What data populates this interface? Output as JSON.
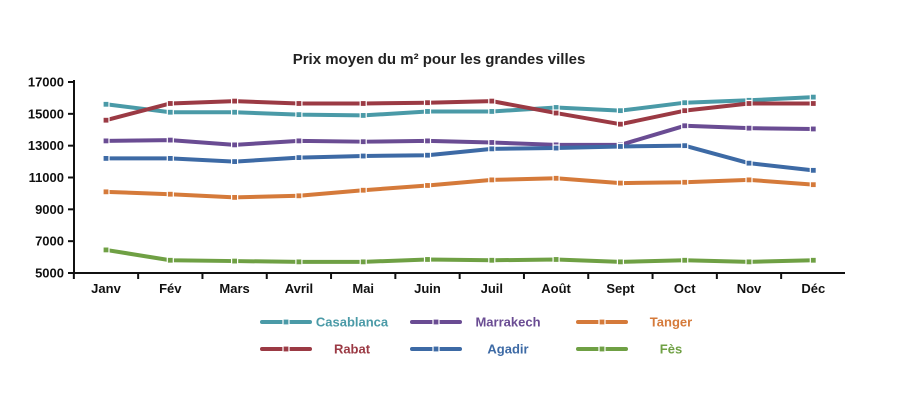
{
  "chart_data": {
    "type": "line",
    "title": "Prix moyen du m² pour les grandes villes",
    "xlabel": "",
    "ylabel": "",
    "categories": [
      "Janv",
      "Fév",
      "Mars",
      "Avril",
      "Mai",
      "Juin",
      "Juil",
      "Août",
      "Sept",
      "Oct",
      "Nov",
      "Déc"
    ],
    "ylim": [
      5000,
      17000
    ],
    "yticks": [
      "5000",
      "7000",
      "9000",
      "11000",
      "13000",
      "15000",
      "17000"
    ],
    "grid": false,
    "legend_position": "bottom",
    "series": [
      {
        "name": "Casablanca",
        "color": "#4a9aa7",
        "values": [
          15600,
          15100,
          15100,
          14950,
          14900,
          15150,
          15150,
          15400,
          15200,
          15700,
          15850,
          16050
        ]
      },
      {
        "name": "Marrakech",
        "color": "#6a4c93",
        "values": [
          13300,
          13350,
          13050,
          13300,
          13250,
          13300,
          13200,
          13050,
          13050,
          14250,
          14100,
          14050
        ]
      },
      {
        "name": "Tanger",
        "color": "#d57a3a",
        "values": [
          10100,
          9950,
          9750,
          9850,
          10200,
          10500,
          10850,
          10950,
          10650,
          10700,
          10850,
          10550
        ]
      },
      {
        "name": "Rabat",
        "color": "#9b3a44",
        "values": [
          14600,
          15650,
          15800,
          15650,
          15650,
          15700,
          15800,
          15050,
          14350,
          15200,
          15650,
          15650
        ]
      },
      {
        "name": "Agadir",
        "color": "#3d6aa5",
        "values": [
          12200,
          12200,
          12000,
          12250,
          12350,
          12400,
          12800,
          12850,
          12950,
          13000,
          11900,
          11450
        ]
      },
      {
        "name": "Fès",
        "color": "#6fa044",
        "values": [
          6450,
          5800,
          5750,
          5700,
          5700,
          5850,
          5800,
          5850,
          5700,
          5800,
          5700,
          5800
        ]
      }
    ]
  }
}
